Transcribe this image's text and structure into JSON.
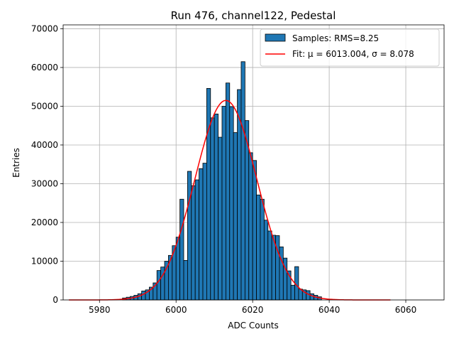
{
  "chart_data": {
    "type": "bar",
    "title": "Run 476, channel122, Pedestal",
    "xlabel": "ADC Counts",
    "ylabel": "Entries",
    "xlim": [
      5969.6,
      5970.0
    ],
    "ylim": [
      0,
      71000
    ],
    "xticks": [
      5980,
      6000,
      6020,
      6040,
      6060
    ],
    "yticks": [
      0,
      10000,
      20000,
      30000,
      40000,
      50000,
      60000,
      70000
    ],
    "grid": true,
    "legend_position": "top-right",
    "bin_width": 1,
    "bins": {
      "x_left": [
        5986,
        5987,
        5988,
        5989,
        5990,
        5991,
        5992,
        5993,
        5994,
        5995,
        5996,
        5997,
        5998,
        5999,
        6000,
        6001,
        6002,
        6003,
        6004,
        6005,
        6006,
        6007,
        6008,
        6009,
        6010,
        6011,
        6012,
        6013,
        6014,
        6015,
        6016,
        6017,
        6018,
        6019,
        6020,
        6021,
        6022,
        6023,
        6024,
        6025,
        6026,
        6027,
        6028,
        6029,
        6030,
        6031,
        6032,
        6033,
        6034,
        6035,
        6036,
        6037
      ],
      "counts": [
        500,
        700,
        900,
        1200,
        1600,
        2300,
        2600,
        3300,
        4400,
        7600,
        8500,
        10000,
        11500,
        14000,
        16200,
        26000,
        10200,
        33200,
        29500,
        31000,
        33900,
        35300,
        54600,
        47000,
        48000,
        42000,
        50000,
        56000,
        49900,
        43200,
        54300,
        61500,
        46300,
        38000,
        36000,
        27100,
        26000,
        20600,
        17800,
        16700,
        16600,
        13700,
        10800,
        7500,
        3800,
        8600,
        2800,
        2600,
        2400,
        1600,
        1200,
        800
      ],
      "series_name": "Samples: RMS=8.25",
      "color": "#1f77b4",
      "edge_color": "#000000"
    },
    "fit": {
      "series_name": "Fit: μ = 6013.004, σ = 8.078",
      "mu": 6013.004,
      "sigma": 8.078,
      "amplitude": 51500,
      "x_range": [
        5972,
        6056
      ],
      "color": "#ff0000"
    },
    "legend": [
      {
        "label": "Samples: RMS=8.25",
        "kind": "patch",
        "color": "#1f77b4"
      },
      {
        "label": "Fit: μ = 6013.004, σ = 8.078",
        "kind": "line",
        "color": "#ff0000"
      }
    ]
  }
}
